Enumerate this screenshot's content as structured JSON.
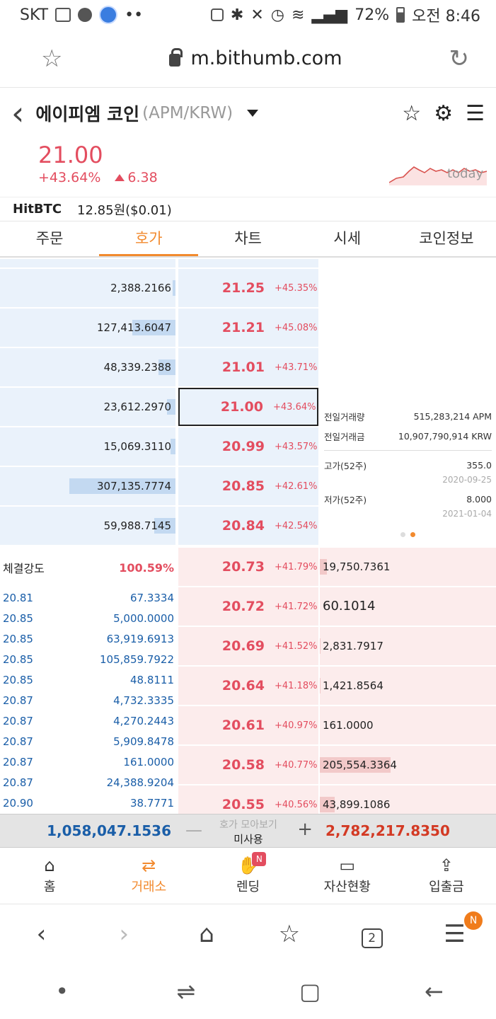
{
  "status": {
    "carrier": "SKT",
    "battery": "72%",
    "time": "오전 8:46"
  },
  "browser": {
    "url": "m.bithumb.com"
  },
  "header": {
    "coin_name": "에이피엠 코인",
    "pair": "(APM/KRW)"
  },
  "price": {
    "current": "21.00",
    "change_pct": "+43.64%",
    "change_abs": "6.38",
    "sparkline_label": "today"
  },
  "external": {
    "exchange": "HitBTC",
    "price": "12.85원($0.01)"
  },
  "tabs": [
    "주문",
    "호가",
    "차트",
    "시세",
    "코인정보"
  ],
  "asks": [
    {
      "qty": "2,388.2166",
      "price": "21.25",
      "pct": "+45.35%",
      "depth": 0.01
    },
    {
      "qty": "127,413.6047",
      "price": "21.21",
      "pct": "+45.08%",
      "depth": 0.41
    },
    {
      "qty": "48,339.2388",
      "price": "21.01",
      "pct": "+43.71%",
      "depth": 0.16
    },
    {
      "qty": "23,612.2970",
      "price": "21.00",
      "pct": "+43.64%",
      "depth": 0.08
    },
    {
      "qty": "15,069.3110",
      "price": "20.99",
      "pct": "+43.57%",
      "depth": 0.05
    },
    {
      "qty": "307,135.7774",
      "price": "20.85",
      "pct": "+42.61%",
      "depth": 1.0
    },
    {
      "qty": "59,988.7145",
      "price": "20.84",
      "pct": "+42.54%",
      "depth": 0.2
    }
  ],
  "bids": [
    {
      "qty": "19,750.7361",
      "price": "20.73",
      "pct": "+41.79%",
      "depth": 0.1
    },
    {
      "qty": "60.1014",
      "price": "20.72",
      "pct": "+41.72%",
      "depth": 0.0
    },
    {
      "qty": "2,831.7917",
      "price": "20.69",
      "pct": "+41.52%",
      "depth": 0.01
    },
    {
      "qty": "1,421.8564",
      "price": "20.64",
      "pct": "+41.18%",
      "depth": 0.01
    },
    {
      "qty": "161.0000",
      "price": "20.61",
      "pct": "+40.97%",
      "depth": 0.0
    },
    {
      "qty": "205,554.3364",
      "price": "20.58",
      "pct": "+40.77%",
      "depth": 1.0
    },
    {
      "qty": "43,899.1086",
      "price": "20.55",
      "pct": "+40.56%",
      "depth": 0.21
    }
  ],
  "info": {
    "prev_volume_label": "전일거래량",
    "prev_volume": "515,283,214 APM",
    "prev_amount_label": "전일거래금",
    "prev_amount": "10,907,790,914 KRW",
    "high_label": "고가(52주)",
    "high": "355.0",
    "high_date": "2020-09-25",
    "low_label": "저가(52주)",
    "low": "8.000",
    "low_date": "2021-01-04"
  },
  "trades": {
    "strength_label": "체결강도",
    "strength": "100.59%",
    "rows": [
      {
        "price": "20.81",
        "qty": "67.3334"
      },
      {
        "price": "20.85",
        "qty": "5,000.0000"
      },
      {
        "price": "20.85",
        "qty": "63,919.6913"
      },
      {
        "price": "20.85",
        "qty": "105,859.7922"
      },
      {
        "price": "20.85",
        "qty": "48.8111"
      },
      {
        "price": "20.87",
        "qty": "4,732.3335"
      },
      {
        "price": "20.87",
        "qty": "4,270.2443"
      },
      {
        "price": "20.87",
        "qty": "5,909.8478"
      },
      {
        "price": "20.87",
        "qty": "161.0000"
      },
      {
        "price": "20.87",
        "qty": "24,388.9204"
      },
      {
        "price": "20.90",
        "qty": "38.7771"
      }
    ]
  },
  "totals": {
    "ask_total": "1,058,047.1536",
    "mid_label": "호가 모아보기",
    "mid_value": "미사용",
    "bid_total": "2,782,217.8350"
  },
  "bottom_nav": [
    {
      "label": "홈",
      "icon": "home-icon"
    },
    {
      "label": "거래소",
      "icon": "exchange-icon"
    },
    {
      "label": "렌딩",
      "icon": "lending-icon",
      "badge": "N"
    },
    {
      "label": "자산현황",
      "icon": "wallet-icon"
    },
    {
      "label": "입출금",
      "icon": "transfer-icon"
    }
  ],
  "browser_nav": {
    "tabs_count": "2",
    "menu_badge": "N"
  }
}
